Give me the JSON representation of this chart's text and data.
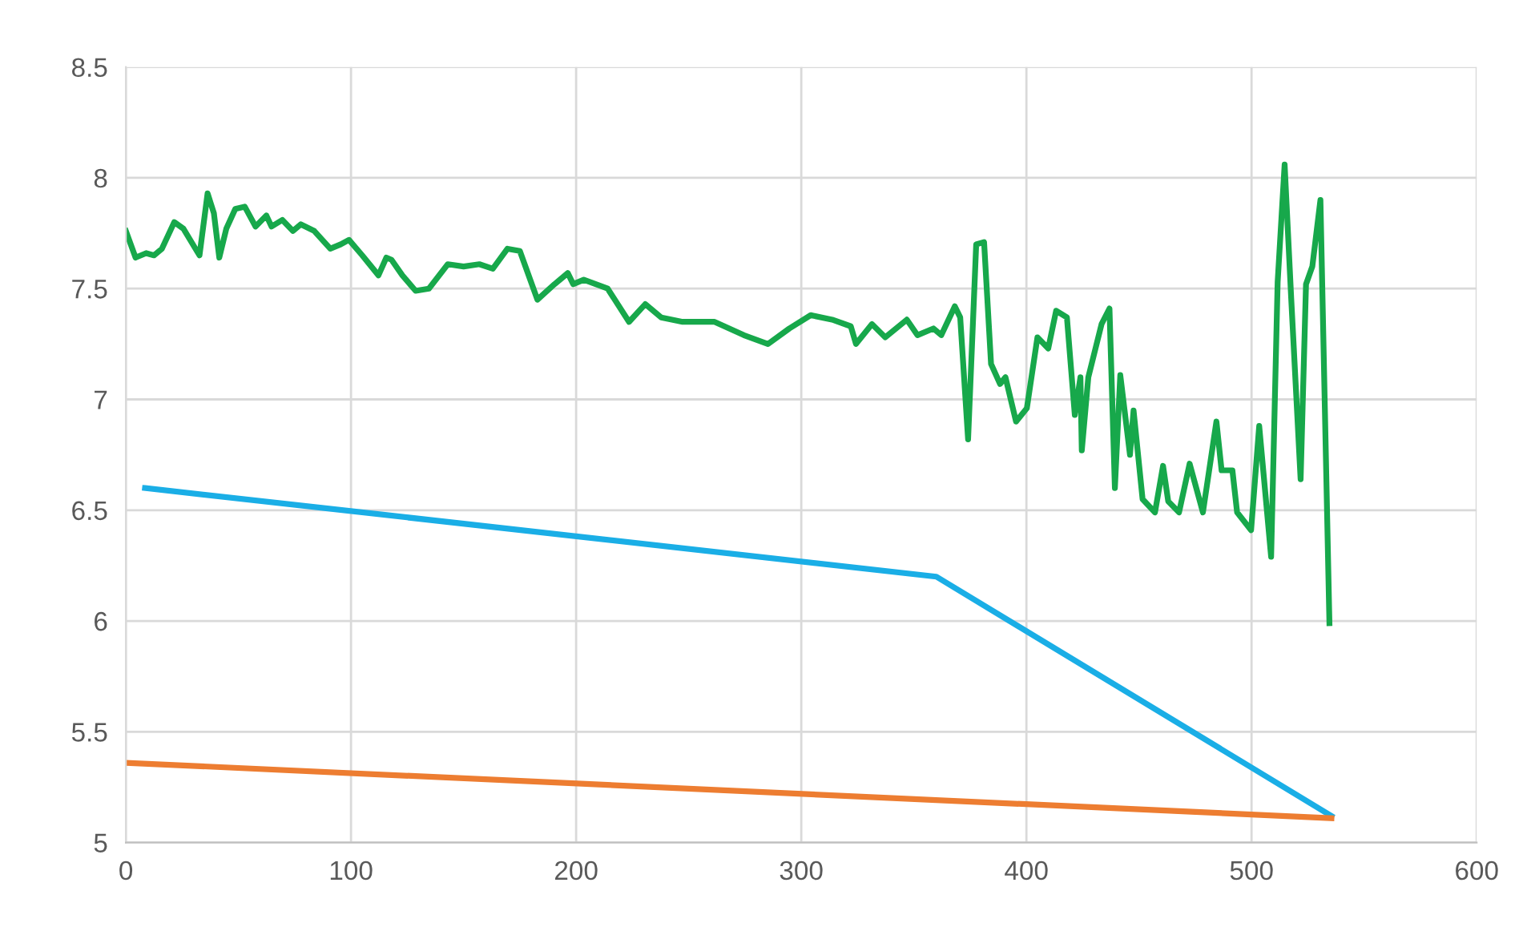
{
  "chart_data": {
    "type": "line",
    "xlim": [
      0,
      600
    ],
    "xticks": [
      0,
      100,
      200,
      300,
      400,
      500,
      600
    ],
    "ylim": [
      5,
      8.5
    ],
    "yticks": [
      5,
      5.5,
      6,
      6.5,
      7,
      7.5,
      8,
      8.5
    ],
    "grid": true,
    "legend": false,
    "marker": "none",
    "line_style": "solid",
    "series": [
      {
        "color": "#17a84b",
        "x": [
          0,
          4.3,
          9,
          12.5,
          16,
          21.5,
          25.6,
          32.7,
          36.3,
          39.1,
          41.5,
          44.6,
          48.6,
          52.8,
          57.6,
          62.4,
          64.7,
          69.5,
          74.2,
          77.7,
          83.7,
          90.8,
          95.5,
          99.1,
          105,
          112.2,
          115.7,
          118,
          122.8,
          128.7,
          134.6,
          143,
          150,
          157,
          163,
          169.5,
          175,
          182.8,
          190.4,
          196.3,
          198.7,
          203.4,
          214,
          223.5,
          230.7,
          237.8,
          247.3,
          261.5,
          274.5,
          285.2,
          294.7,
          304.2,
          313.7,
          322,
          324.3,
          331.4,
          337.3,
          346.9,
          351.6,
          358.7,
          362.2,
          368.2,
          370.6,
          374.1,
          377.7,
          381.2,
          384.3,
          388.3,
          390.7,
          395.4,
          400.2,
          404.9,
          409.7,
          413.2,
          418,
          421.5,
          424,
          424.6,
          427.5,
          433.4,
          436.9,
          439.3,
          441.7,
          446,
          447.6,
          451.6,
          457.1,
          460.7,
          463,
          467.8,
          472.5,
          478.4,
          484.4,
          486.7,
          491.5,
          493.6,
          499.8,
          503.4,
          508.7,
          511.6,
          514.7,
          517.6,
          521.8,
          524.2,
          527,
          530.6,
          534.6
        ],
        "values": [
          7.76,
          7.64,
          7.66,
          7.65,
          7.68,
          7.8,
          7.77,
          7.65,
          7.93,
          7.84,
          7.64,
          7.77,
          7.86,
          7.87,
          7.78,
          7.83,
          7.78,
          7.81,
          7.76,
          7.79,
          7.76,
          7.68,
          7.7,
          7.72,
          7.65,
          7.56,
          7.64,
          7.63,
          7.56,
          7.49,
          7.5,
          7.61,
          7.6,
          7.61,
          7.59,
          7.68,
          7.67,
          7.45,
          7.52,
          7.57,
          7.52,
          7.54,
          7.5,
          7.35,
          7.43,
          7.37,
          7.35,
          7.35,
          7.29,
          7.25,
          7.32,
          7.38,
          7.36,
          7.33,
          7.25,
          7.34,
          7.28,
          7.36,
          7.29,
          7.32,
          7.29,
          7.42,
          7.37,
          6.82,
          7.7,
          7.71,
          7.16,
          7.07,
          7.1,
          6.9,
          6.96,
          7.28,
          7.23,
          7.4,
          7.37,
          6.93,
          7.1,
          6.77,
          7.1,
          7.34,
          7.41,
          6.6,
          7.11,
          6.75,
          6.95,
          6.55,
          6.49,
          6.7,
          6.54,
          6.49,
          6.71,
          6.49,
          6.9,
          6.68,
          6.68,
          6.49,
          6.41,
          6.88,
          6.29,
          7.53,
          8.06,
          7.46,
          6.64,
          7.52,
          7.6,
          7.9,
          5.99
        ]
      },
      {
        "color": "#1aaee6",
        "x": [
          8.5,
          360,
          535.5
        ],
        "values": [
          6.6,
          6.2,
          5.12
        ]
      },
      {
        "color": "#ed7d31",
        "x": [
          0,
          535.5
        ],
        "values": [
          5.36,
          5.11
        ]
      }
    ]
  }
}
